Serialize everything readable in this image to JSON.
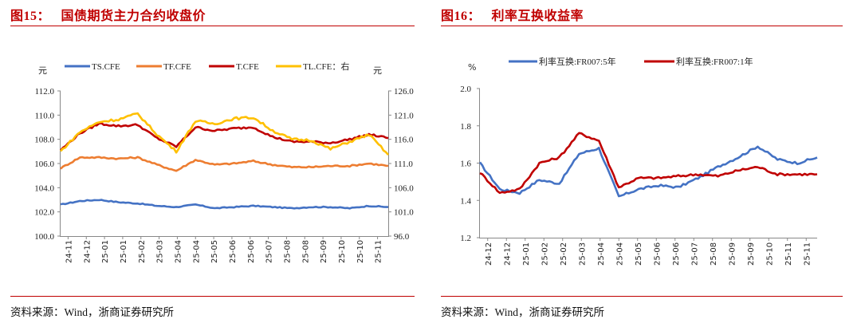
{
  "figures": [
    {
      "title": "图15：   国债期货主力合约收盘价",
      "source": "资料来源：Wind，浙商证券研究所"
    },
    {
      "title": "图16：   利率互换收益率",
      "source": "资料来源：Wind，浙商证券研究所"
    }
  ],
  "colors": {
    "title_red": "#c00000",
    "rule_red": "#c00000",
    "axis": "#888888",
    "ts": "#4472c4",
    "tf": "#ed7d31",
    "t": "#c00000",
    "tl": "#ffc000",
    "irs5y": "#4472c4",
    "irs1y": "#c00000"
  },
  "chart_data": [
    {
      "type": "line",
      "title": "国债期货主力合约收盘价",
      "ylabel_left": "元",
      "ylabel_right": "元",
      "ylim_left": [
        100.0,
        112.0
      ],
      "ylim_right": [
        96.0,
        126.0
      ],
      "yticks_left": [
        "112.0",
        "110.0",
        "108.0",
        "106.0",
        "104.0",
        "102.0",
        "100.0"
      ],
      "yticks_right": [
        "126.0",
        "121.0",
        "116.0",
        "111.0",
        "106.0",
        "101.0",
        "96.0"
      ],
      "categories": [
        "24-11",
        "24-12",
        "25-01",
        "25-01",
        "25-02",
        "25-03",
        "25-04",
        "25-04",
        "25-05",
        "25-06",
        "25-06",
        "25-07",
        "25-08",
        "25-08",
        "25-09",
        "25-10",
        "25-10",
        "25-11"
      ],
      "grid": false,
      "legend_position": "top",
      "series": [
        {
          "name": "TS.CFE",
          "axis": "left",
          "color": "#4472c4",
          "values": [
            102.6,
            102.9,
            103.0,
            102.8,
            102.7,
            102.5,
            102.4,
            102.6,
            102.3,
            102.4,
            102.5,
            102.4,
            102.3,
            102.4,
            102.4,
            102.3,
            102.5,
            102.4
          ]
        },
        {
          "name": "TF.CFE",
          "axis": "left",
          "color": "#ed7d31",
          "values": [
            105.6,
            106.5,
            106.5,
            106.4,
            106.5,
            105.9,
            105.4,
            106.3,
            105.9,
            106.0,
            106.2,
            105.9,
            105.7,
            105.7,
            105.8,
            105.8,
            106.0,
            105.8
          ]
        },
        {
          "name": "T.CFE",
          "axis": "left",
          "color": "#c00000",
          "values": [
            107.1,
            108.5,
            109.3,
            109.1,
            109.2,
            108.1,
            107.4,
            109.0,
            108.7,
            108.9,
            109.0,
            108.2,
            107.8,
            107.8,
            107.7,
            108.0,
            108.4,
            108.1
          ]
        },
        {
          "name": "TL.CFE：右",
          "axis": "right",
          "color": "#ffc000",
          "values": [
            113.5,
            117.5,
            119.6,
            120.1,
            121.3,
            117.0,
            113.5,
            119.8,
            119.2,
            120.3,
            120.5,
            117.8,
            116.0,
            115.8,
            114.0,
            115.5,
            117.0,
            112.8
          ]
        }
      ]
    },
    {
      "type": "line",
      "title": "利率互换收益率",
      "ylabel": "%",
      "ylim": [
        1.2,
        2.0
      ],
      "yticks": [
        "2.0",
        "1.8",
        "1.6",
        "1.4",
        "1.2"
      ],
      "categories": [
        "24-12",
        "24-12",
        "25-01",
        "25-02",
        "25-02",
        "25-03",
        "25-04",
        "25-04",
        "25-05",
        "25-06",
        "25-06",
        "25-07",
        "25-08",
        "25-09",
        "25-09",
        "25-10",
        "25-11",
        "25-11"
      ],
      "grid": false,
      "legend_position": "top",
      "series": [
        {
          "name": "利率互换:FR007:5年",
          "color": "#4472c4",
          "values": [
            1.6,
            1.46,
            1.44,
            1.51,
            1.49,
            1.65,
            1.68,
            1.42,
            1.46,
            1.48,
            1.47,
            1.52,
            1.58,
            1.63,
            1.69,
            1.62,
            1.6,
            1.63
          ]
        },
        {
          "name": "利率互换:FR007:1年",
          "color": "#c00000",
          "values": [
            1.55,
            1.44,
            1.46,
            1.6,
            1.63,
            1.76,
            1.72,
            1.47,
            1.52,
            1.52,
            1.53,
            1.54,
            1.53,
            1.56,
            1.58,
            1.54,
            1.54,
            1.54
          ]
        }
      ]
    }
  ]
}
